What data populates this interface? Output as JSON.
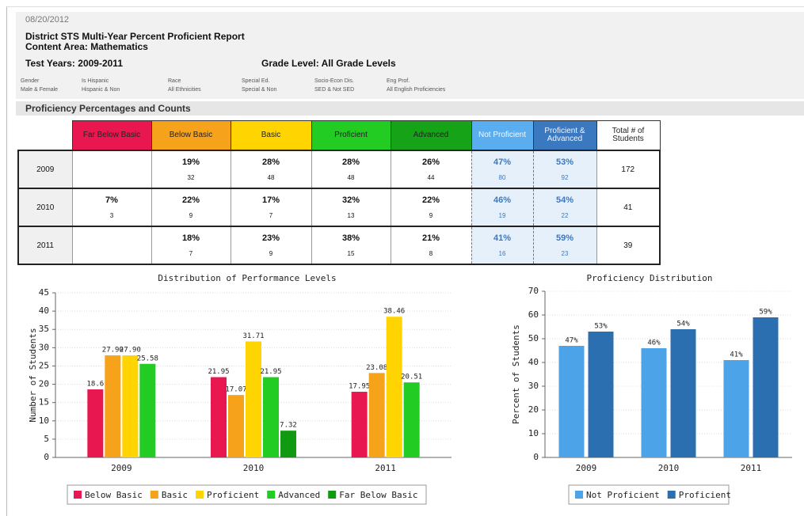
{
  "header": {
    "date": "08/20/2012",
    "title": "District STS Multi-Year Percent Proficient Report",
    "content_area": "Content Area: Mathematics",
    "test_years": "Test Years: 2009-2011",
    "grade_level": "Grade Level: All Grade Levels"
  },
  "filters": [
    {
      "label": "Gender",
      "value": "Male & Female"
    },
    {
      "label": "Is Hispanic",
      "value": "Hispanic & Non"
    },
    {
      "label": "Race",
      "value": "All Ethnicities"
    },
    {
      "label": "Special Ed.",
      "value": "Special & Non"
    },
    {
      "label": "Socio-Econ Dis.",
      "value": "SED & Not SED"
    },
    {
      "label": "Eng Prof.",
      "value": "All English Proficiencies"
    }
  ],
  "section_title": "Proficiency Percentages and Counts",
  "table": {
    "columns": [
      "Far Below Basic",
      "Below Basic",
      "Basic",
      "Proficient",
      "Advanced",
      "Not Proficient",
      "Proficient & Advanced",
      "Total # of Students"
    ],
    "colors": [
      "#e8174f",
      "#f7a21b",
      "#ffd400",
      "#22cc22",
      "#17a317",
      "#5aaef0",
      "#3a78c0",
      "#ffffff"
    ],
    "rows": [
      {
        "year": "2009",
        "cells": [
          null,
          {
            "pct": "19%",
            "count": "32"
          },
          {
            "pct": "28%",
            "count": "48"
          },
          {
            "pct": "28%",
            "count": "48"
          },
          {
            "pct": "26%",
            "count": "44"
          },
          {
            "pct": "47%",
            "count": "80"
          },
          {
            "pct": "53%",
            "count": "92"
          }
        ],
        "total": "172"
      },
      {
        "year": "2010",
        "cells": [
          {
            "pct": "7%",
            "count": "3"
          },
          {
            "pct": "22%",
            "count": "9"
          },
          {
            "pct": "17%",
            "count": "7"
          },
          {
            "pct": "32%",
            "count": "13"
          },
          {
            "pct": "22%",
            "count": "9"
          },
          {
            "pct": "46%",
            "count": "19"
          },
          {
            "pct": "54%",
            "count": "22"
          }
        ],
        "total": "41"
      },
      {
        "year": "2011",
        "cells": [
          null,
          {
            "pct": "18%",
            "count": "7"
          },
          {
            "pct": "23%",
            "count": "9"
          },
          {
            "pct": "38%",
            "count": "15"
          },
          {
            "pct": "21%",
            "count": "8"
          },
          {
            "pct": "41%",
            "count": "16"
          },
          {
            "pct": "59%",
            "count": "23"
          }
        ],
        "total": "39"
      }
    ]
  },
  "chart_data": [
    {
      "type": "bar",
      "title": "Distribution of Performance Levels",
      "y_label": "Number of Students",
      "categories": [
        "2009",
        "2010",
        "2011"
      ],
      "series": [
        {
          "name": "Below Basic",
          "color": "#e8174f",
          "values": [
            18.6,
            21.95,
            17.95
          ],
          "value_labels": [
            "18.6",
            "21.95",
            "17.95"
          ]
        },
        {
          "name": "Basic",
          "color": "#f7a21b",
          "values": [
            27.9,
            17.07,
            23.08
          ],
          "value_labels": [
            "27.90",
            "17.07",
            "23.08"
          ]
        },
        {
          "name": "Proficient",
          "color": "#ffd400",
          "values": [
            27.9,
            31.71,
            38.46
          ],
          "value_labels": [
            "27.90",
            "31.71",
            "38.46"
          ]
        },
        {
          "name": "Advanced",
          "color": "#22cc22",
          "values": [
            25.58,
            21.95,
            20.51
          ],
          "value_labels": [
            "25.58",
            "21.95",
            "20.51"
          ]
        },
        {
          "name": "Far Below Basic",
          "color": "#129912",
          "values": [
            null,
            7.32,
            null
          ],
          "value_labels": [
            null,
            "7.32",
            null
          ]
        }
      ],
      "ylim": [
        0,
        45
      ],
      "yticks": [
        0,
        5,
        10,
        15,
        20,
        25,
        30,
        35,
        40,
        45
      ],
      "grid": true,
      "legend": "bottom"
    },
    {
      "type": "bar",
      "title": "Proficiency Distribution",
      "y_label": "Percent of Students",
      "categories": [
        "2009",
        "2010",
        "2011"
      ],
      "series": [
        {
          "name": "Not Proficient",
          "color": "#4ca3e8",
          "values": [
            47,
            46,
            41
          ],
          "value_labels": [
            "47%",
            "46%",
            "41%"
          ]
        },
        {
          "name": "Proficient",
          "color": "#2c6fb0",
          "values": [
            53,
            54,
            59
          ],
          "value_labels": [
            "53%",
            "54%",
            "59%"
          ]
        }
      ],
      "ylim": [
        0,
        70
      ],
      "yticks": [
        0,
        10,
        20,
        30,
        40,
        50,
        60,
        70
      ],
      "grid": true,
      "legend": "bottom"
    }
  ]
}
